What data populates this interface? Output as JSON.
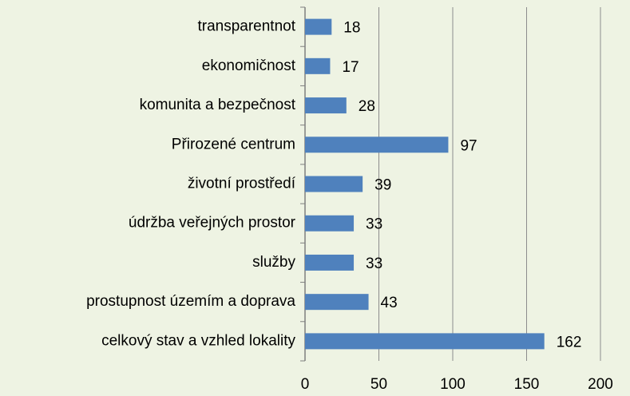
{
  "chart_data": {
    "type": "bar",
    "orientation": "horizontal",
    "categories": [
      "transparentnot",
      "ekonomičnost",
      "komunita a bezpečnost",
      "Přirozené centrum",
      "životní prostředí",
      "údržba veřejných prostor",
      "služby",
      "prostupnost územím a doprava",
      "celkový stav a vzhled lokality"
    ],
    "values": [
      18,
      17,
      28,
      97,
      39,
      33,
      33,
      43,
      162
    ],
    "color": "#4f81bd",
    "xlim": [
      0,
      200
    ],
    "xticks": [
      0,
      50,
      100,
      150,
      200
    ],
    "grid": true
  }
}
